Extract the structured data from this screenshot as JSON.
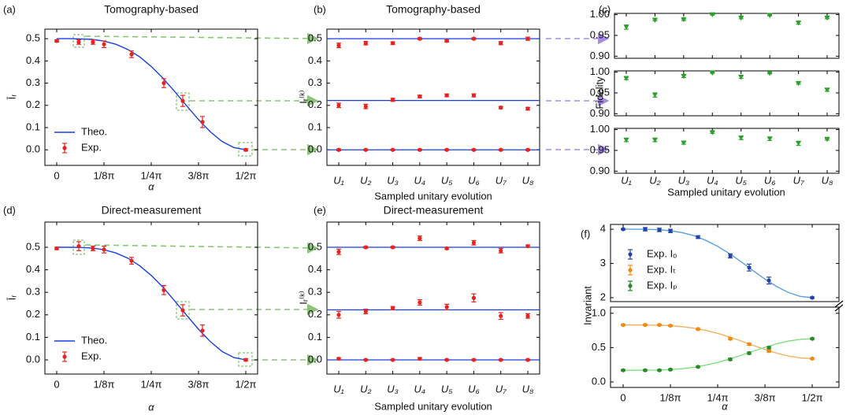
{
  "chart_data": [
    {
      "panel": "(a)",
      "type": "line",
      "title": "Tomography-based",
      "xlabel": "α",
      "ylabel": "Īᵣ",
      "xlim": [
        -0.098,
        1.669
      ],
      "xticks": [
        0,
        {
          "value": 0.3927,
          "label": "1/8π"
        },
        {
          "value": 0.7854,
          "label": "1/4π"
        },
        {
          "value": 1.1781,
          "label": "3/8π"
        },
        {
          "value": 1.5708,
          "label": "1/2π"
        }
      ],
      "ylim": [
        -0.07,
        0.543
      ],
      "yticks": [
        {
          "value": 0,
          "label": "0.0"
        },
        0.1,
        0.2,
        0.3,
        0.4,
        0.5
      ],
      "legend": "lower left",
      "series": [
        {
          "name": "Theo.",
          "style": "line",
          "color": "#1a3fe0",
          "x": [
            0,
            0.0982,
            0.1963,
            0.2945,
            0.3927,
            0.4909,
            0.589,
            0.6872,
            0.7854,
            0.8836,
            0.9817,
            1.0799,
            1.1781,
            1.2763,
            1.3744,
            1.4726,
            1.5708
          ],
          "values": [
            0.5,
            0.5,
            0.499,
            0.497,
            0.489,
            0.475,
            0.452,
            0.419,
            0.375,
            0.322,
            0.261,
            0.198,
            0.136,
            0.081,
            0.037,
            0.01,
            0
          ]
        },
        {
          "name": "Exp.",
          "style": "errorbar",
          "color": "#e8231f",
          "x": [
            0,
            0.183,
            0.301,
            0.393,
            0.622,
            0.89,
            1.047,
            1.211,
            1.571
          ],
          "values": [
            0.49,
            0.485,
            0.485,
            0.475,
            0.43,
            0.3,
            0.22,
            0.125,
            0
          ],
          "errors": [
            0.005,
            0.01,
            0.01,
            0.015,
            0.015,
            0.02,
            0.025,
            0.025,
            0.005
          ]
        }
      ]
    },
    {
      "panel": "(b)",
      "type": "errorbar",
      "title": "Tomography-based",
      "xlabel": "Sampled unitary evolution",
      "ylabel": "Iᵣ⁽ᵏ⁾",
      "categories": [
        "U₁",
        "U₂",
        "U₃",
        "U₄",
        "U₅",
        "U₆",
        "U₇",
        "U₈"
      ],
      "ylim": [
        -0.07,
        0.543
      ],
      "yticks": [
        {
          "value": 0,
          "label": "0.0"
        },
        0.1,
        0.2,
        0.3,
        0.4,
        0.5
      ],
      "hlines": [
        0.5,
        0.222,
        0
      ],
      "hline_color": "#1a3fe0",
      "series": [
        {
          "color": "#e8231f",
          "values": [
            0.47,
            0.48,
            0.48,
            0.5,
            0.49,
            0.5,
            0.48,
            0.5
          ],
          "errors": [
            0.01,
            0.008,
            0.006,
            0.004,
            0.005,
            0.004,
            0.007,
            0.007
          ]
        },
        {
          "color": "#e8231f",
          "values": [
            0.2,
            0.195,
            0.225,
            0.24,
            0.245,
            0.245,
            0.19,
            0.185
          ],
          "errors": [
            0.01,
            0.01,
            0.007,
            0.006,
            0.006,
            0.007,
            0.005,
            0.006
          ]
        },
        {
          "color": "#e8231f",
          "values": [
            0,
            0,
            0,
            0,
            0,
            0,
            0,
            0
          ],
          "errors": [
            0.004,
            0.003,
            0.003,
            0.003,
            0.003,
            0.003,
            0.003,
            0.003
          ]
        }
      ]
    },
    {
      "panel": "(c)",
      "type": "errorbar",
      "layout": "stacked",
      "xlabel": "Sampled unitary evolution",
      "ylabel": "Fidelity",
      "categories": [
        "U₁",
        "U₂",
        "U₃",
        "U₄",
        "U₅",
        "U₆",
        "U₇",
        "U₈"
      ],
      "ylim": [
        0.895,
        1.003
      ],
      "yticks": [
        {
          "value": 0.9,
          "label": "0.90"
        },
        0.95,
        {
          "value": 1,
          "label": "1.00"
        }
      ],
      "marker": "triangle",
      "series": [
        {
          "color": "#2ca02c",
          "values": [
            0.97,
            0.987,
            0.988,
            1,
            0.992,
            0.998,
            0.98,
            0.992
          ],
          "errors": [
            0.005,
            0.002,
            0.002,
            0.001,
            0.002,
            0.001,
            0.003,
            0.002
          ]
        },
        {
          "color": "#2ca02c",
          "values": [
            0.985,
            0.945,
            0.99,
            0.998,
            0.988,
            0.997,
            0.973,
            0.957
          ],
          "errors": [
            0.003,
            0.005,
            0.003,
            0.001,
            0.003,
            0.001,
            0.002,
            0.003
          ]
        },
        {
          "color": "#2ca02c",
          "values": [
            0.975,
            0.975,
            0.968,
            0.993,
            0.98,
            0.978,
            0.967,
            0.977
          ],
          "errors": [
            0.004,
            0.004,
            0.003,
            0.002,
            0.004,
            0.004,
            0.005,
            0.002
          ]
        }
      ]
    },
    {
      "panel": "(d)",
      "type": "line",
      "title": "Direct-measurement",
      "xlabel": "α",
      "ylabel": "Īᵣ",
      "xlim": [
        -0.098,
        1.669
      ],
      "xticks": [
        0,
        {
          "value": 0.3927,
          "label": "1/8π"
        },
        {
          "value": 0.7854,
          "label": "1/4π"
        },
        {
          "value": 1.1781,
          "label": "3/8π"
        },
        {
          "value": 1.5708,
          "label": "1/2π"
        }
      ],
      "ylim": [
        -0.063,
        0.612
      ],
      "yticks": [
        {
          "value": 0,
          "label": "0.0"
        },
        0.1,
        0.2,
        0.3,
        0.4,
        0.5
      ],
      "legend": "lower left",
      "series": [
        {
          "name": "Theo.",
          "style": "line",
          "color": "#1a3fe0",
          "x": [
            0,
            0.0982,
            0.1963,
            0.2945,
            0.3927,
            0.4909,
            0.589,
            0.6872,
            0.7854,
            0.8836,
            0.9817,
            1.0799,
            1.1781,
            1.2763,
            1.3744,
            1.4726,
            1.5708
          ],
          "values": [
            0.5,
            0.5,
            0.499,
            0.497,
            0.489,
            0.475,
            0.452,
            0.419,
            0.375,
            0.322,
            0.261,
            0.198,
            0.136,
            0.081,
            0.037,
            0.01,
            0
          ]
        },
        {
          "name": "Exp.",
          "style": "errorbar",
          "color": "#e8231f",
          "x": [
            0,
            0.183,
            0.301,
            0.393,
            0.622,
            0.89,
            1.047,
            1.211,
            1.571
          ],
          "values": [
            0.495,
            0.505,
            0.495,
            0.49,
            0.44,
            0.31,
            0.22,
            0.13,
            0
          ],
          "errors": [
            0.005,
            0.02,
            0.01,
            0.015,
            0.015,
            0.02,
            0.025,
            0.025,
            0.005
          ]
        }
      ]
    },
    {
      "panel": "(e)",
      "type": "errorbar",
      "title": "Direct-measurement",
      "xlabel": "Sampled unitary evolution",
      "ylabel": "Iᵣ⁽ᵏ⁾",
      "categories": [
        "U₁",
        "U₂",
        "U₃",
        "U₄",
        "U₅",
        "U₆",
        "U₇",
        "U₈"
      ],
      "ylim": [
        -0.063,
        0.612
      ],
      "yticks": [
        {
          "value": 0,
          "label": "0.0"
        },
        0.1,
        0.2,
        0.3,
        0.4,
        0.5
      ],
      "hlines": [
        0.5,
        0.222,
        0
      ],
      "hline_color": "#1a3fe0",
      "series": [
        {
          "color": "#e8231f",
          "values": [
            0.48,
            0.5,
            0.5,
            0.54,
            0.495,
            0.52,
            0.485,
            0.505
          ],
          "errors": [
            0.012,
            0.004,
            0.004,
            0.01,
            0.004,
            0.01,
            0.01,
            0.005
          ]
        },
        {
          "color": "#e8231f",
          "values": [
            0.2,
            0.215,
            0.23,
            0.255,
            0.235,
            0.275,
            0.195,
            0.195
          ],
          "errors": [
            0.015,
            0.01,
            0.007,
            0.012,
            0.012,
            0.018,
            0.015,
            0.01
          ]
        },
        {
          "color": "#e8231f",
          "values": [
            0.005,
            0,
            0,
            0.005,
            0,
            0,
            0,
            0
          ],
          "errors": [
            0.004,
            0.003,
            0.003,
            0.005,
            0.003,
            0.003,
            0.003,
            0.003
          ]
        }
      ]
    },
    {
      "panel": "(f)",
      "type": "line",
      "xlabel": "α",
      "ylabel": "Invariant",
      "xlim": [
        -0.105,
        1.793
      ],
      "xticks": [
        0,
        {
          "value": 0.3927,
          "label": "1/8π"
        },
        {
          "value": 0.7854,
          "label": "1/4π"
        },
        {
          "value": 1.1781,
          "label": "3/8π"
        },
        {
          "value": 1.5708,
          "label": "1/2π"
        }
      ],
      "ylim": [
        -0.08,
        1.09
      ],
      "yticks": [
        {
          "value": 0,
          "label": "0.0"
        },
        0.5,
        {
          "value": 1,
          "label": "1.0"
        }
      ],
      "upper_ylim": [
        1.885,
        4.14
      ],
      "upper_yticks": [
        2,
        3,
        4
      ],
      "legend": "upper left",
      "series": [
        {
          "style": "line",
          "axis": "upper",
          "color": "#5aa0e0",
          "x": [
            0,
            0.0982,
            0.1963,
            0.2945,
            0.3927,
            0.4909,
            0.589,
            0.6872,
            0.7854,
            0.8836,
            0.9817,
            1.0799,
            1.1781,
            1.2763,
            1.3744,
            1.4726,
            1.5708
          ],
          "values": [
            4,
            4,
            3.997,
            3.986,
            3.957,
            3.901,
            3.81,
            3.676,
            3.5,
            3.286,
            3.044,
            2.79,
            2.543,
            2.323,
            2.15,
            2.038,
            2
          ]
        },
        {
          "style": "line",
          "color": "#f5b060",
          "x": [
            0,
            0.0982,
            0.1963,
            0.2945,
            0.3927,
            0.4909,
            0.589,
            0.6872,
            0.7854,
            0.8836,
            0.9817,
            1.0799,
            1.1781,
            1.2763,
            1.3744,
            1.4726,
            1.5708
          ],
          "values": [
            0.83,
            0.83,
            0.829,
            0.827,
            0.82,
            0.806,
            0.783,
            0.751,
            0.708,
            0.655,
            0.596,
            0.534,
            0.473,
            0.419,
            0.377,
            0.349,
            0.34
          ]
        },
        {
          "style": "line",
          "color": "#7ee07e",
          "x": [
            0,
            0.0982,
            0.1963,
            0.2945,
            0.3927,
            0.4909,
            0.589,
            0.6872,
            0.7854,
            0.8836,
            0.9817,
            1.0799,
            1.1781,
            1.2763,
            1.3744,
            1.4726,
            1.5708
          ],
          "values": [
            0.17,
            0.17,
            0.171,
            0.173,
            0.18,
            0.193,
            0.214,
            0.245,
            0.285,
            0.334,
            0.39,
            0.448,
            0.505,
            0.556,
            0.596,
            0.621,
            0.63
          ]
        },
        {
          "name": "Exp. Iₒ",
          "style": "errorbar",
          "axis": "upper",
          "color": "#2443a8",
          "x": [
            0,
            0.183,
            0.301,
            0.393,
            0.622,
            0.89,
            1.047,
            1.211,
            1.571
          ],
          "values": [
            4,
            4,
            3.98,
            3.95,
            3.77,
            3.22,
            2.88,
            2.5,
            2
          ],
          "errors": [
            0.02,
            0.05,
            0.05,
            0.05,
            0.04,
            0.06,
            0.1,
            0.1,
            0.02
          ]
        },
        {
          "name": "Exp. Iₜ",
          "style": "errorbar",
          "color": "#f08a10",
          "x": [
            0,
            0.183,
            0.301,
            0.393,
            0.622,
            0.89,
            1.047,
            1.211,
            1.571
          ],
          "values": [
            0.83,
            0.83,
            0.83,
            0.82,
            0.77,
            0.63,
            0.55,
            0.45,
            0.34
          ],
          "errors": [
            0.01,
            0.01,
            0.01,
            0.01,
            0.01,
            0.015,
            0.015,
            0.015,
            0.01
          ]
        },
        {
          "name": "Exp. Iₚ",
          "style": "errorbar",
          "color": "#2a8a2a",
          "x": [
            0,
            0.183,
            0.301,
            0.393,
            0.622,
            0.89,
            1.047,
            1.211,
            1.571
          ],
          "values": [
            0.17,
            0.17,
            0.17,
            0.18,
            0.22,
            0.33,
            0.42,
            0.5,
            0.63
          ],
          "errors": [
            0.01,
            0.01,
            0.01,
            0.01,
            0.01,
            0.015,
            0.015,
            0.015,
            0.01
          ]
        }
      ]
    }
  ]
}
